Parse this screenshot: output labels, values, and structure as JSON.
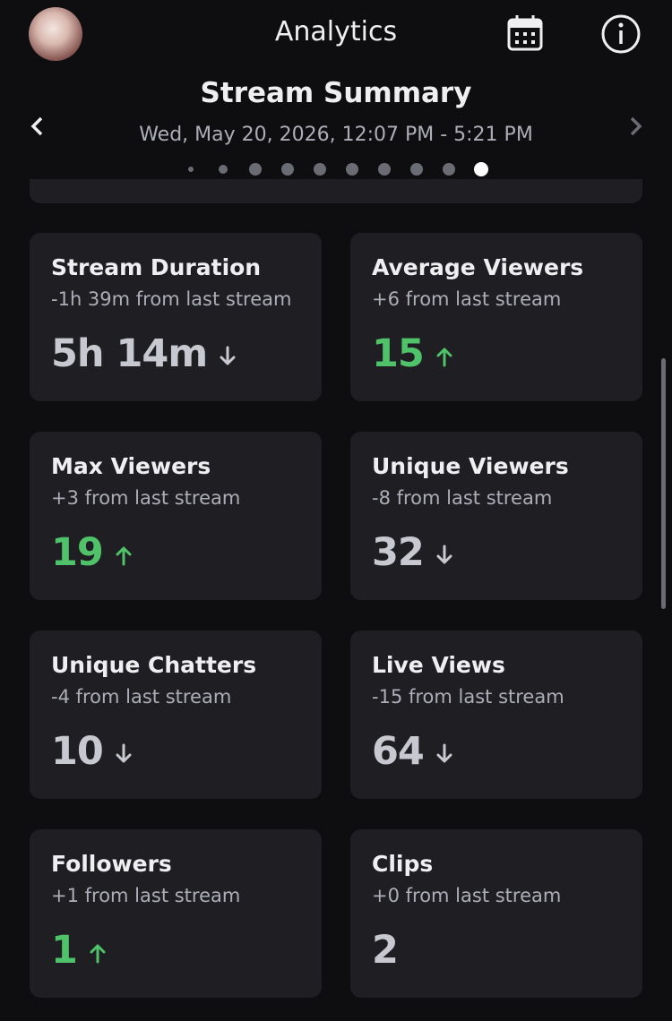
{
  "header": {
    "title": "Analytics"
  },
  "summary": {
    "title": "Stream Summary",
    "date": "Wed, May 20, 2026, 12:07 PM - 5:21 PM"
  },
  "cards": [
    {
      "title": "Stream Duration",
      "delta": "-1h 39m from last stream",
      "value": "5h 14m",
      "trend": "down"
    },
    {
      "title": "Average Viewers",
      "delta": "+6 from last stream",
      "value": 15,
      "trend": "up"
    },
    {
      "title": "Max Viewers",
      "delta": "+3 from last stream",
      "value": 19,
      "trend": "up"
    },
    {
      "title": "Unique Viewers",
      "delta": "-8 from last stream",
      "value": 32,
      "trend": "down"
    },
    {
      "title": "Unique Chatters",
      "delta": "-4 from last stream",
      "value": 10,
      "trend": "down"
    },
    {
      "title": "Live Views",
      "delta": "-15 from last stream",
      "value": 64,
      "trend": "down"
    },
    {
      "title": "Followers",
      "delta": "+1 from last stream",
      "value": 1,
      "trend": "up"
    },
    {
      "title": "Clips",
      "delta": "+0 from last stream",
      "value": 2
    }
  ]
}
